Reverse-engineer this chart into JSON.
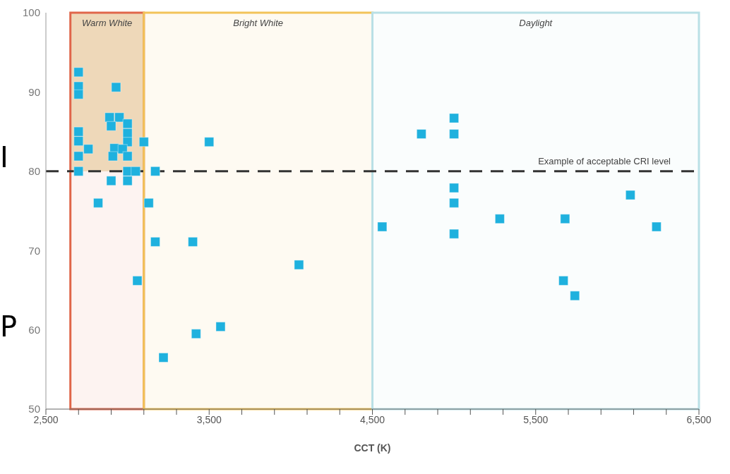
{
  "chart_data": {
    "type": "scatter",
    "xlabel": "CCT (K)",
    "x": [
      2700,
      2700,
      2700,
      2930,
      2700,
      2700,
      2700,
      2700,
      2760,
      2890,
      2950,
      2900,
      3000,
      3000,
      3000,
      2920,
      2970,
      2910,
      3000,
      3000,
      3050,
      2900,
      3000,
      3100,
      3500,
      3170,
      2820,
      3130,
      3170,
      3400,
      4050,
      3060,
      3570,
      3420,
      3220,
      5000,
      4800,
      5000,
      5000,
      5000,
      5000,
      4560,
      5280,
      5680,
      6080,
      6240,
      5670,
      5740
    ],
    "series": [
      {
        "color": "#1fb1de",
        "values": [
          92.5,
          90.7,
          89.7,
          90.6,
          85,
          83.8,
          81.9,
          80,
          82.8,
          86.8,
          86.8,
          85.7,
          86,
          84.8,
          83.7,
          82.9,
          82.8,
          81.9,
          81.9,
          80,
          80,
          78.8,
          78.8,
          83.7,
          83.7,
          80,
          76,
          76,
          71.1,
          71.1,
          68.2,
          66.2,
          60.4,
          59.5,
          56.5,
          86.7,
          84.7,
          84.7,
          77.9,
          76,
          72.1,
          73,
          74,
          74,
          77,
          73,
          66.2,
          64.3
        ]
      }
    ],
    "xlim": [
      2500,
      6500
    ],
    "xticks": [
      {
        "value": 2500,
        "label": "2,500"
      },
      {
        "value": 2700,
        "label": null
      },
      {
        "value": 2900,
        "label": null
      },
      {
        "value": 3100,
        "label": null
      },
      {
        "value": 3300,
        "label": null
      },
      {
        "value": 3500,
        "label": "3,500"
      },
      {
        "value": 3700,
        "label": null
      },
      {
        "value": 3900,
        "label": null
      },
      {
        "value": 4100,
        "label": null
      },
      {
        "value": 4300,
        "label": null
      },
      {
        "value": 4500,
        "label": "4,500"
      },
      {
        "value": 4700,
        "label": null
      },
      {
        "value": 4900,
        "label": null
      },
      {
        "value": 5100,
        "label": null
      },
      {
        "value": 5300,
        "label": null
      },
      {
        "value": 5500,
        "label": "5,500"
      },
      {
        "value": 5700,
        "label": null
      },
      {
        "value": 5900,
        "label": null
      },
      {
        "value": 6100,
        "label": null
      },
      {
        "value": 6300,
        "label": null
      },
      {
        "value": 6500,
        "label": "6,500"
      }
    ],
    "ylim": [
      50,
      100
    ],
    "yticks": [
      50,
      60,
      70,
      80,
      90,
      100
    ],
    "marker": "square",
    "grid": false,
    "legend": false,
    "ref_lines": [
      {
        "axis": "y",
        "value": 80,
        "label": "Example of acceptable CRI level",
        "color": "#333333",
        "line_style": "dashed"
      }
    ],
    "bands": [
      {
        "axis": "x",
        "from": 2650,
        "to": 3100,
        "label": "Warm White",
        "color": "#e0664a"
      },
      {
        "axis": "x",
        "from": 3100,
        "to": 4500,
        "label": "Bright White",
        "color": "#f2c35a"
      },
      {
        "axis": "x",
        "from": 4500,
        "to": 6500,
        "label": "Daylight",
        "color": "#b9e0e6"
      }
    ],
    "annotations": [
      "I",
      "P"
    ]
  }
}
